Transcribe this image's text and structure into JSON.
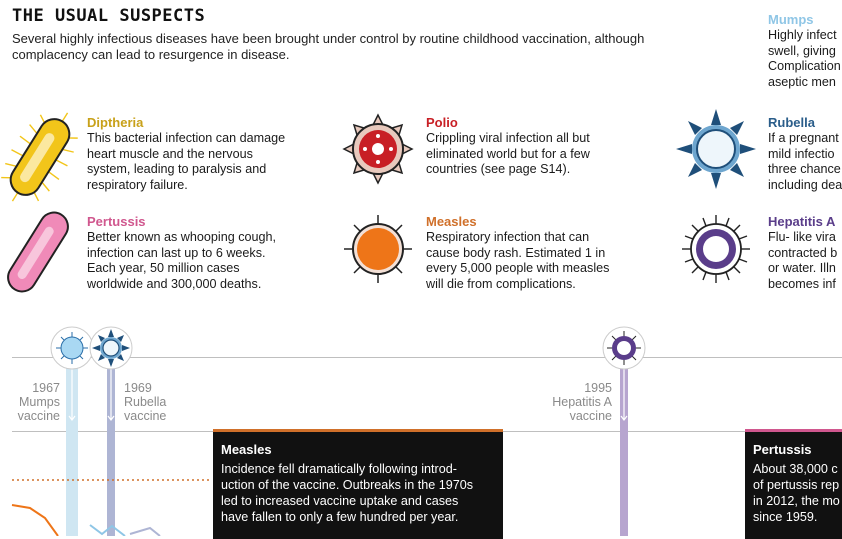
{
  "header": {
    "title": "THE USUAL SUSPECTS",
    "intro": "Several highly infectious diseases have been brought under control by routine childhood vaccination, although complacency can lead to resurgence in disease."
  },
  "diseases": [
    {
      "name": "Diptheria",
      "color": "#c8a11a",
      "desc": [
        "This bacterial infection can damage",
        "heart muscle and the nervous",
        "system, leading to paralysis and",
        "respiratory failure."
      ],
      "icon": "diptheria-bacterium-icon"
    },
    {
      "name": "Pertussis",
      "color": "#d0578e",
      "desc": [
        "Better known as whooping cough,",
        "infection can last up to 6 weeks.",
        "Each year, 50 million cases",
        "worldwide and 300,000 deaths."
      ],
      "icon": "pertussis-bacterium-icon"
    },
    {
      "name": "Polio",
      "color": "#c81f25",
      "desc": [
        "Crippling viral infection all but",
        "eliminated world but for a few",
        "countries (see page S14)."
      ],
      "icon": "polio-virus-icon"
    },
    {
      "name": "Measles",
      "color": "#d0702a",
      "desc": [
        "Respiratory infection that can",
        "cause body rash. Estimated 1 in",
        "every 5,000 people with measles",
        "will die from complications."
      ],
      "icon": "measles-virus-icon"
    },
    {
      "name": "Mumps",
      "color": "#8fc6e6",
      "desc": [
        "Highly infect",
        "swell, giving",
        "Complication",
        "aseptic men"
      ],
      "icon": "mumps-virus-icon"
    },
    {
      "name": "Rubella",
      "color": "#2a5d8a",
      "desc": [
        "If a pregnant",
        "mild infectio",
        "three chance",
        "including dea"
      ],
      "icon": "rubella-virus-icon"
    },
    {
      "name": "Hepatitis A",
      "color": "#5a3d8a",
      "desc": [
        "Flu- like vira",
        "contracted b",
        "or water. Illn",
        "becomes inf"
      ],
      "icon": "hepatitis-a-virus-icon"
    }
  ],
  "timeline": {
    "events": [
      {
        "year": "1967",
        "label": [
          "Mumps",
          "vaccine"
        ]
      },
      {
        "year": "1969",
        "label": [
          "Rubella",
          "vaccine"
        ]
      },
      {
        "year": "1995",
        "label": [
          "Hepatitis A",
          "vaccine"
        ]
      }
    ],
    "boxes": [
      {
        "title": "Measles",
        "body": [
          "Incidence fell dramatically following introd-",
          "uction of the vaccine. Outbreaks in the 1970s",
          "led to increased vaccine uptake and cases",
          "have fallen to only a few hundred per year."
        ],
        "accent": "#d0702a"
      },
      {
        "title": "Pertussis",
        "body": [
          "About 38,000 c",
          "of pertussis rep",
          "in 2012, the mo",
          "since 1959."
        ],
        "accent": "#d0578e"
      }
    ]
  },
  "colors": {
    "mumps_line": "#cfe6f2",
    "rubella_line": "#aeb5d4",
    "hepatitis_line": "#b7a5cf",
    "grid": "#bfbfbf"
  }
}
